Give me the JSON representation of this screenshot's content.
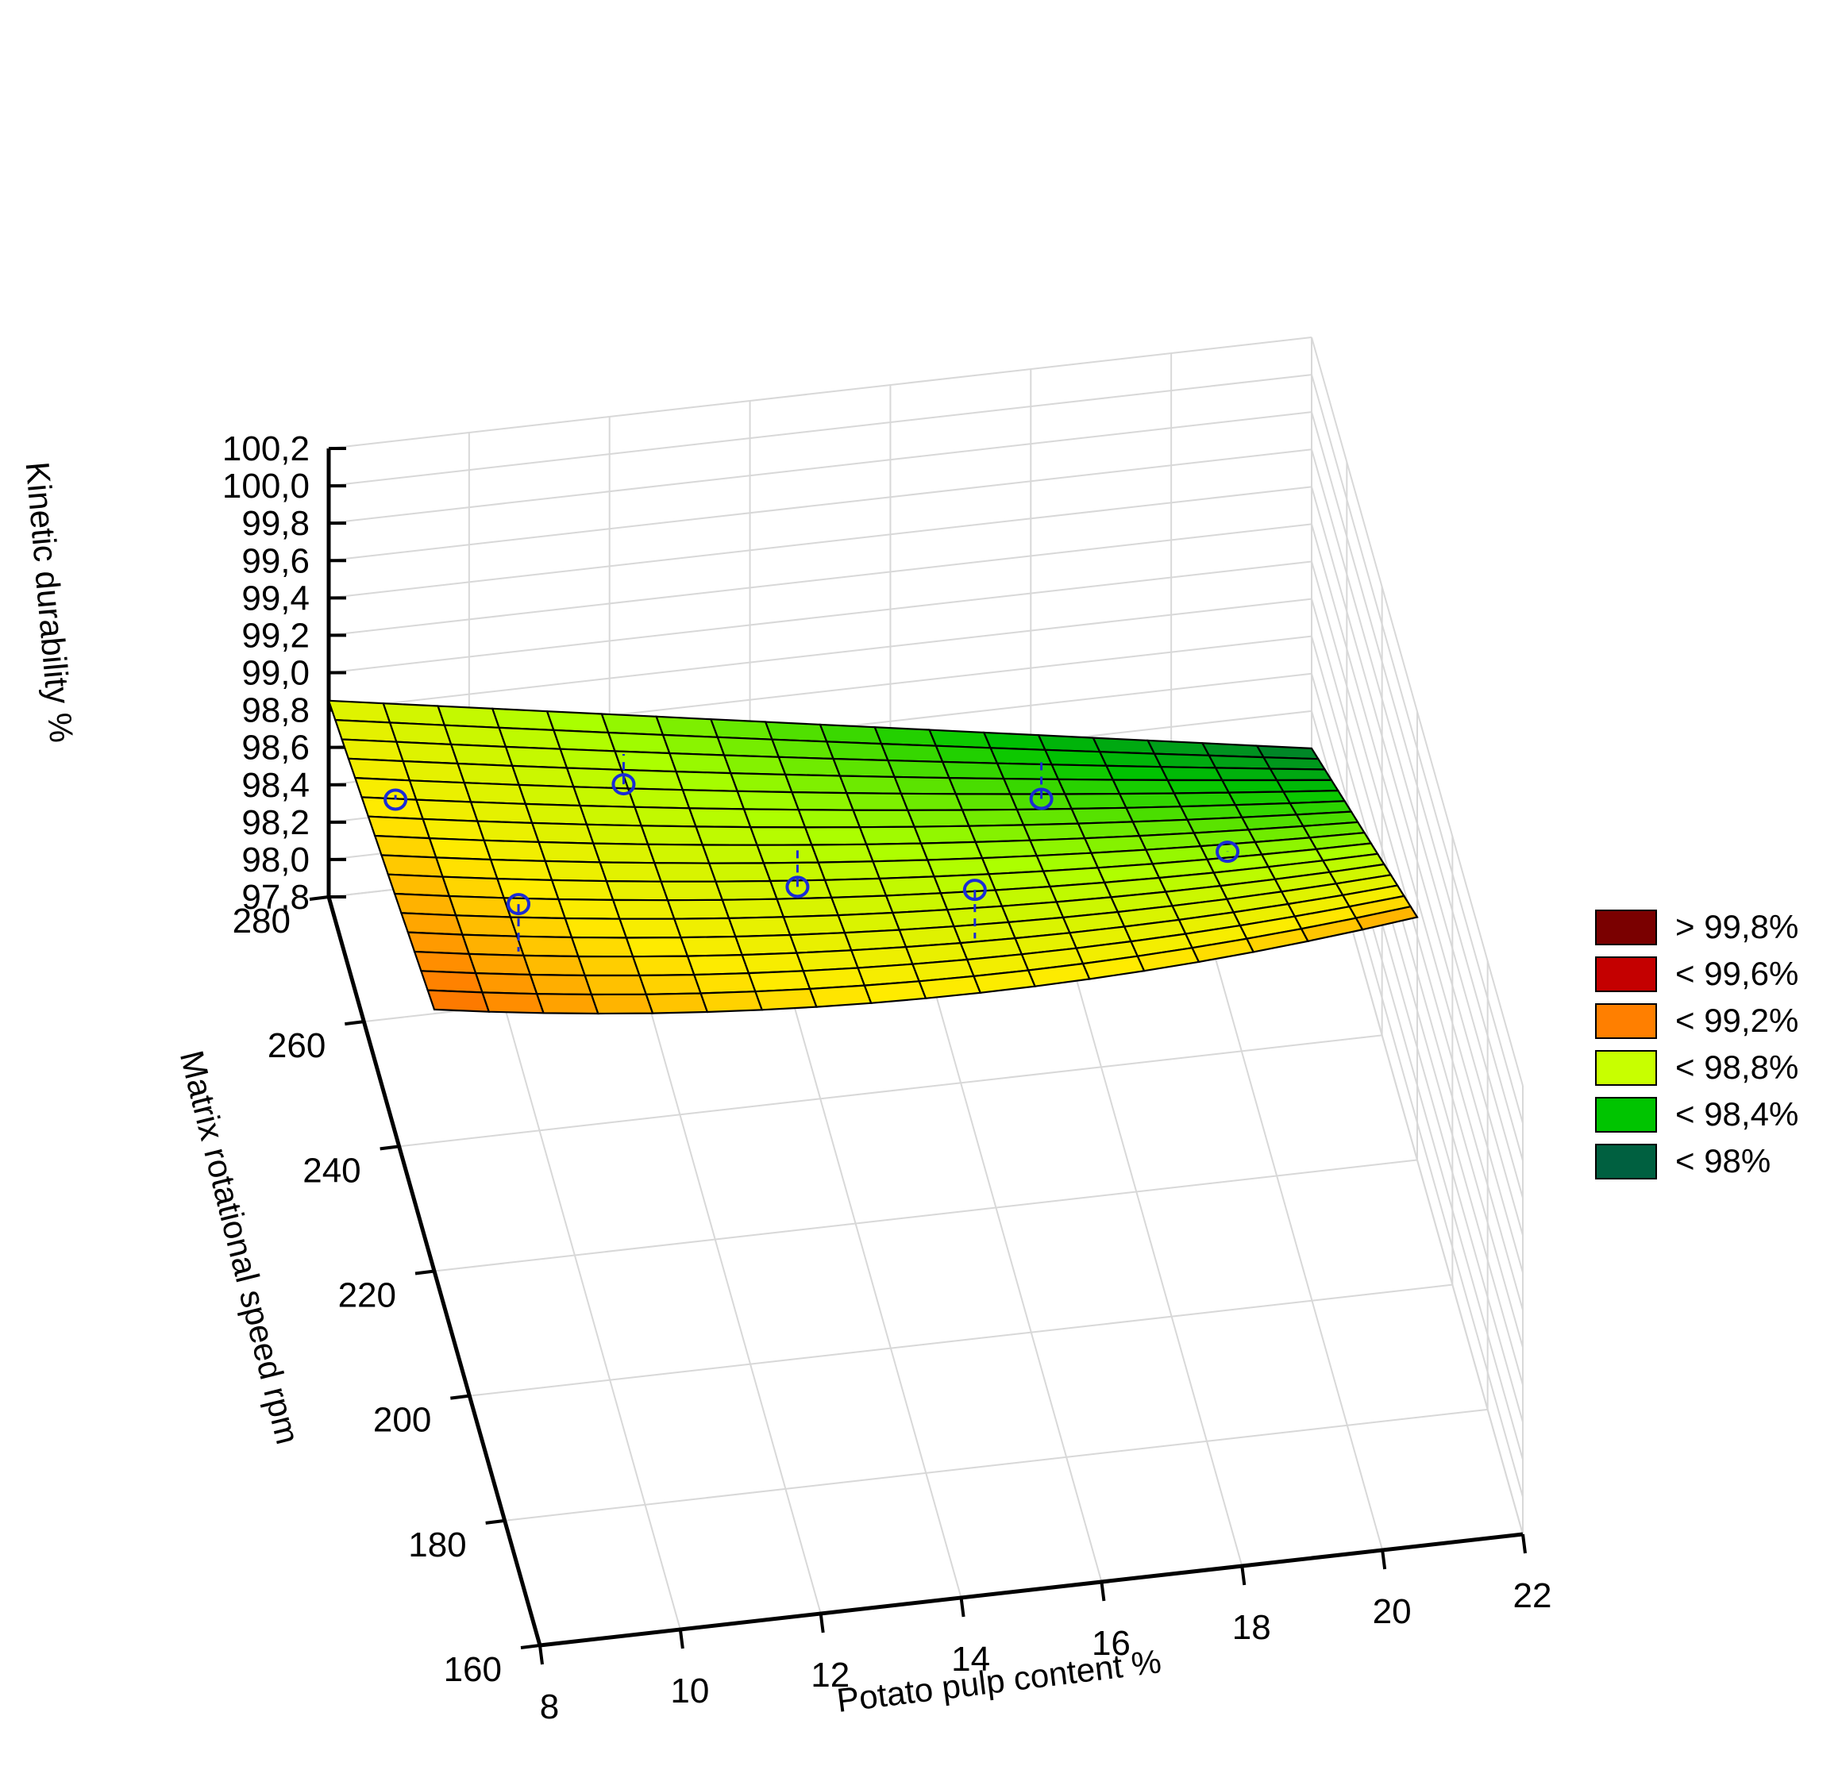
{
  "chart_data": {
    "type": "surface3d",
    "x_axis": {
      "label": "Potato pulp content %",
      "min": 8,
      "max": 22,
      "ticks": [
        "8",
        "10",
        "12",
        "14",
        "16",
        "18",
        "20",
        "22"
      ]
    },
    "y_axis": {
      "label": "Matrix rotational speed rpm",
      "min": 160,
      "max": 280,
      "ticks": [
        "160",
        "180",
        "200",
        "220",
        "240",
        "260",
        "280"
      ]
    },
    "z_axis": {
      "label": "Kinetic durability %",
      "min": 97.8,
      "max": 100.2,
      "ticks": [
        "97,8",
        "98,0",
        "98,2",
        "98,4",
        "98,6",
        "98,8",
        "99,0",
        "99,2",
        "99,4",
        "99,6",
        "99,8",
        "100,0",
        "100,2"
      ]
    },
    "surface": {
      "x_range": [
        8,
        22
      ],
      "y_range": [
        220,
        280
      ],
      "corner_values": {
        "x8_y220": 99.2,
        "x8_y280": 98.85,
        "x22_y220": 99.1,
        "x22_y280": 98.0
      }
    },
    "observed_points": [
      {
        "x": 8.5,
        "y": 262,
        "z": 98.9
      },
      {
        "x": 9.5,
        "y": 232,
        "z": 99.3
      },
      {
        "x": 12,
        "y": 272,
        "z": 98.5
      },
      {
        "x": 14,
        "y": 253,
        "z": 98.5
      },
      {
        "x": 16,
        "y": 232,
        "z": 99.1
      },
      {
        "x": 18,
        "y": 274,
        "z": 98.1
      },
      {
        "x": 20,
        "y": 248,
        "z": 98.6
      }
    ],
    "legend": {
      "position": "right",
      "entries": [
        {
          "label": "> 99,8%",
          "color": "#7a0000"
        },
        {
          "label": "< 99,6%",
          "color": "#c40000"
        },
        {
          "label": "< 99,2%",
          "color": "#ff7f00"
        },
        {
          "label": "< 98,8%",
          "color": "#c8ff00"
        },
        {
          "label": "< 98,4%",
          "color": "#00c400"
        },
        {
          "label": "< 98%",
          "color": "#006040"
        }
      ]
    },
    "grid": true
  }
}
